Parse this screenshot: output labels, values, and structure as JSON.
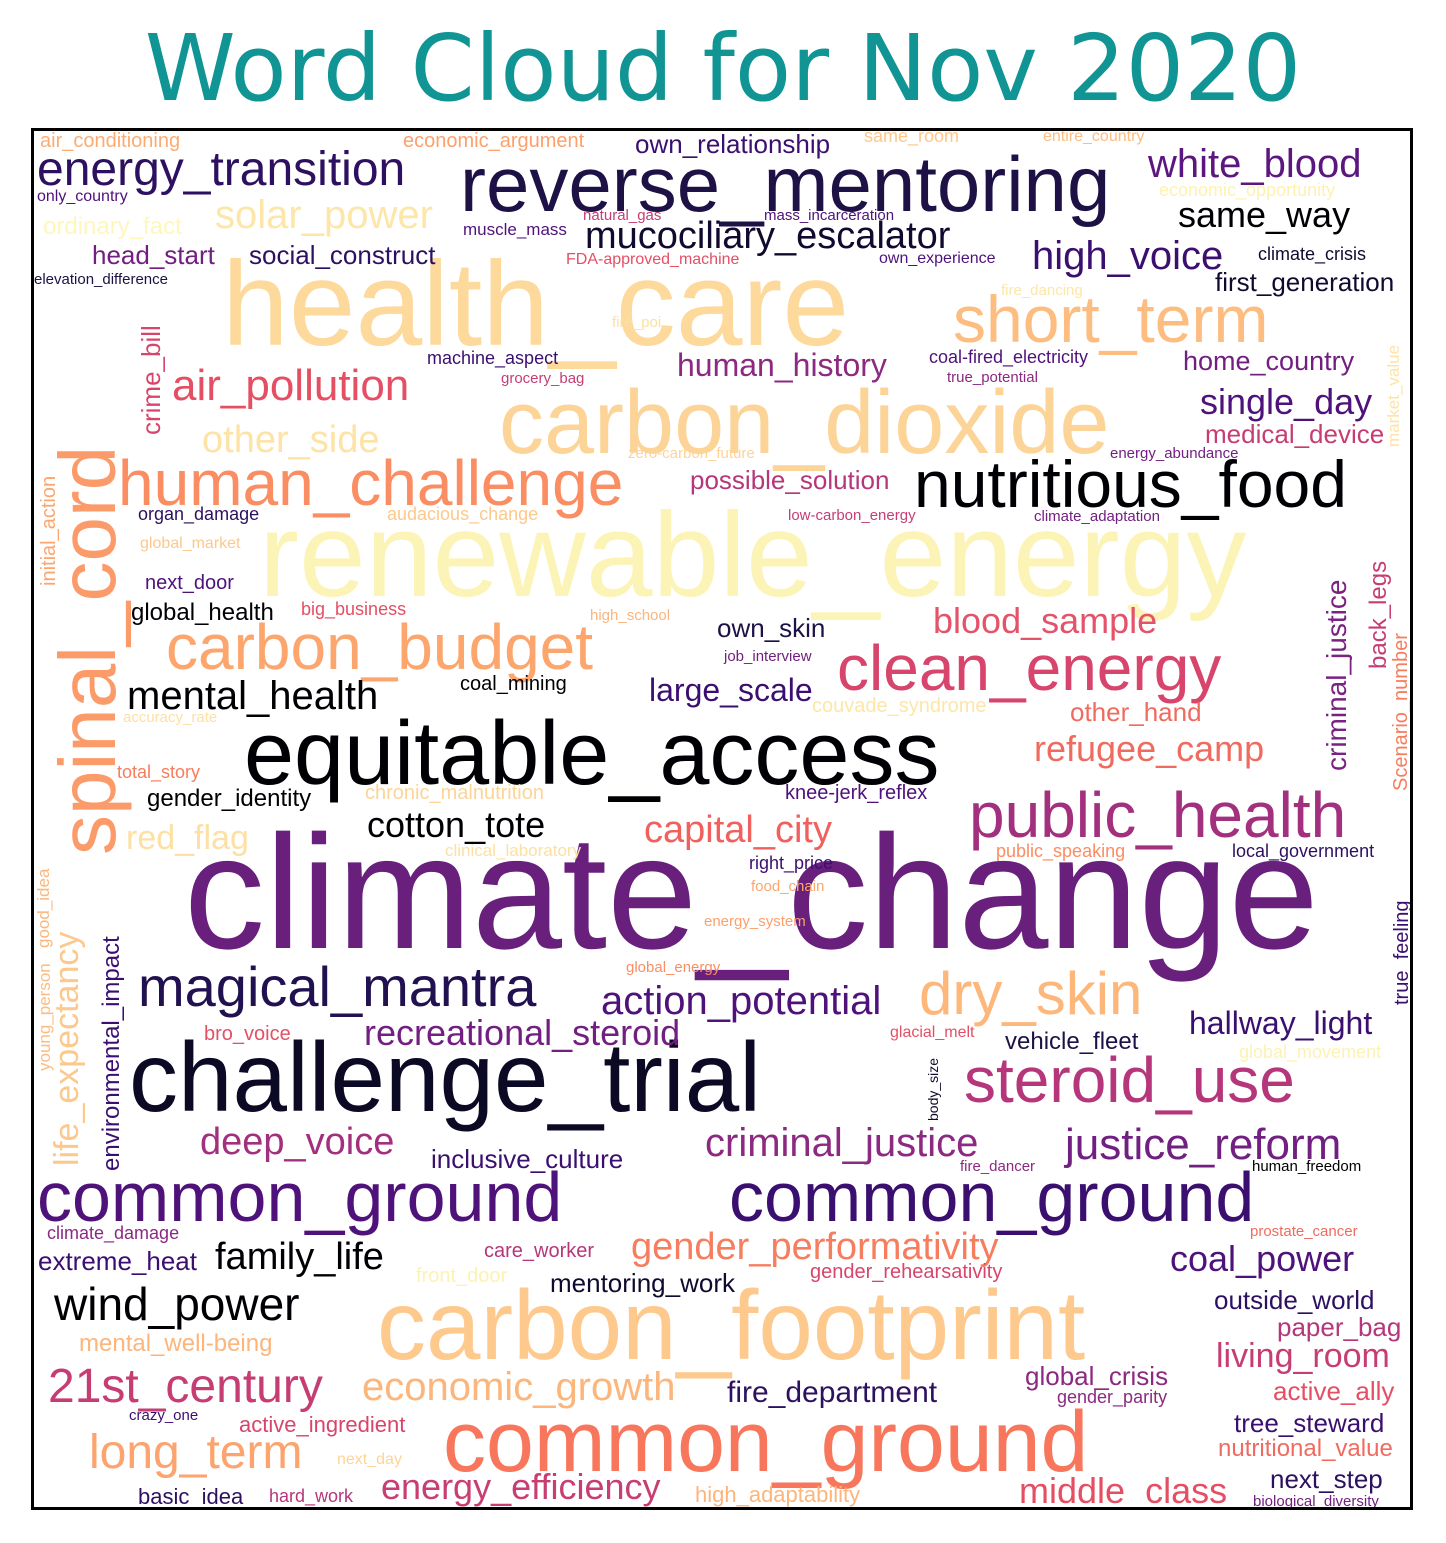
{
  "title": "Word Cloud for Nov 2020",
  "colors": {
    "title": "#109494",
    "border": "#000000",
    "background": "#ffffff"
  },
  "words": [
    {
      "text": "climate_change",
      "color": "#68207c"
    },
    {
      "text": "renewable_energy",
      "color": "#fcf4b6"
    },
    {
      "text": "health_care",
      "color": "#fdd99b"
    },
    {
      "text": "carbon_dioxide",
      "color": "#fdd498"
    },
    {
      "text": "equitable_access",
      "color": "#000004"
    },
    {
      "text": "challenge_trial",
      "color": "#0b0924"
    },
    {
      "text": "reverse_mentoring",
      "color": "#1d1146"
    },
    {
      "text": "carbon_footprint",
      "color": "#fec98d"
    },
    {
      "text": "common_ground",
      "color": "#f8765c"
    },
    {
      "text": "common_ground",
      "color": "#4f127b"
    },
    {
      "text": "common_ground",
      "color": "#3b0f70"
    },
    {
      "text": "spinal_cord",
      "color": "#fc9b6a"
    },
    {
      "text": "nutritious_food",
      "color": "#000004"
    },
    {
      "text": "human_challenge",
      "color": "#fb8d63"
    },
    {
      "text": "carbon_budget",
      "color": "#fca66e"
    },
    {
      "text": "clean_energy",
      "color": "#d8456c"
    },
    {
      "text": "public_health",
      "color": "#a3307e"
    },
    {
      "text": "short_term",
      "color": "#fdbd80"
    },
    {
      "text": "steroid_use",
      "color": "#b5367a"
    },
    {
      "text": "magical_mantra",
      "color": "#221150"
    },
    {
      "text": "dry_skin",
      "color": "#fdb77b"
    },
    {
      "text": "energy_transition",
      "color": "#2d1160"
    },
    {
      "text": "mucociliary_escalator",
      "color": "#110a2e"
    },
    {
      "text": "white_blood",
      "color": "#5c167f"
    },
    {
      "text": "same_way",
      "color": "#000004"
    },
    {
      "text": "solar_power",
      "color": "#fde6a8"
    },
    {
      "text": "high_voice",
      "color": "#3b0f70"
    },
    {
      "text": "air_pollution",
      "color": "#e44f64"
    },
    {
      "text": "other_side",
      "color": "#fde3a5"
    },
    {
      "text": "mental_health",
      "color": "#000004"
    },
    {
      "text": "action_potential",
      "color": "#4f127b"
    },
    {
      "text": "recreational_steroid",
      "color": "#721f81"
    },
    {
      "text": "criminal_justice",
      "color": "#8c2981"
    },
    {
      "text": "justice_reform",
      "color": "#711f81"
    },
    {
      "text": "deep_voice",
      "color": "#a3307e"
    },
    {
      "text": "family_life",
      "color": "#000004"
    },
    {
      "text": "wind_power",
      "color": "#000004"
    },
    {
      "text": "21st_century",
      "color": "#c63d73"
    },
    {
      "text": "economic_growth",
      "color": "#fcb57b"
    },
    {
      "text": "long_term",
      "color": "#fca36e"
    },
    {
      "text": "gender_performativity",
      "color": "#f67d5e"
    },
    {
      "text": "coal_power",
      "color": "#4f127b"
    },
    {
      "text": "cotton_tote",
      "color": "#000004"
    },
    {
      "text": "capital_city",
      "color": "#f0605d"
    },
    {
      "text": "refugee_camp",
      "color": "#f06b5f"
    },
    {
      "text": "blood_sample",
      "color": "#e3536a"
    },
    {
      "text": "large_scale",
      "color": "#3b0f70"
    },
    {
      "text": "single_day",
      "color": "#4f127b"
    },
    {
      "text": "home_country",
      "color": "#721f81"
    },
    {
      "text": "human_history",
      "color": "#8c2981"
    },
    {
      "text": "hallway_light",
      "color": "#3b0f70"
    },
    {
      "text": "middle_class",
      "color": "#e44f64"
    },
    {
      "text": "energy_efficiency",
      "color": "#c83e73"
    },
    {
      "text": "fire_department",
      "color": "#2d1160"
    },
    {
      "text": "living_room",
      "color": "#c63d73"
    },
    {
      "text": "criminal_justice",
      "color": "#7a2181"
    },
    {
      "text": "life_expectancy",
      "color": "#fdc88b"
    },
    {
      "text": "red_flag",
      "color": "#fde0a3"
    },
    {
      "text": "head_start",
      "color": "#721f81"
    },
    {
      "text": "social_construct",
      "color": "#2d1160"
    },
    {
      "text": "first_generation",
      "color": "#110a2e"
    },
    {
      "text": "medical_device",
      "color": "#c63d73"
    },
    {
      "text": "possible_solution",
      "color": "#b5367a"
    },
    {
      "text": "own_relationship",
      "color": "#3b0f70"
    },
    {
      "text": "outside_world",
      "color": "#2d1160"
    },
    {
      "text": "paper_bag",
      "color": "#b5367a"
    },
    {
      "text": "active_ally",
      "color": "#e44f64"
    },
    {
      "text": "global_crisis",
      "color": "#8c2981"
    },
    {
      "text": "tree_steward",
      "color": "#3b0f70"
    },
    {
      "text": "nutritional_value",
      "color": "#f06b5f"
    },
    {
      "text": "next_step",
      "color": "#2d1160"
    },
    {
      "text": "mentoring_work",
      "color": "#110a2e"
    },
    {
      "text": "inclusive_culture",
      "color": "#3b0f70"
    },
    {
      "text": "own_skin",
      "color": "#1d1146"
    },
    {
      "text": "vehicle_fleet",
      "color": "#1d1146"
    },
    {
      "text": "gender_identity",
      "color": "#000004"
    },
    {
      "text": "global_health",
      "color": "#000004"
    },
    {
      "text": "extreme_heat",
      "color": "#3b0f70"
    },
    {
      "text": "other_hand",
      "color": "#f06b5f"
    },
    {
      "text": "environmental_impact",
      "color": "#3b0f70"
    },
    {
      "text": "crime_bill",
      "color": "#d8456c"
    },
    {
      "text": "back_legs",
      "color": "#c63d73"
    },
    {
      "text": "Scenario_number",
      "color": "#f57d5e"
    },
    {
      "text": "true_feeling",
      "color": "#3b0f70"
    },
    {
      "text": "initial_action",
      "color": "#fca66e"
    },
    {
      "text": "air_conditioning",
      "color": "#fcac72"
    },
    {
      "text": "economic_argument",
      "color": "#fca06c"
    },
    {
      "text": "same_room",
      "color": "#fdc88b"
    },
    {
      "text": "entire_country",
      "color": "#fdbc80"
    },
    {
      "text": "only_country",
      "color": "#4f127b"
    },
    {
      "text": "economic_opportunity",
      "color": "#fdf2b2"
    },
    {
      "text": "ordinary_fact",
      "color": "#fef7bc"
    },
    {
      "text": "natural_gas",
      "color": "#c63d73"
    },
    {
      "text": "mass_incarceration",
      "color": "#4f127b"
    },
    {
      "text": "muscle_mass",
      "color": "#4f127b"
    },
    {
      "text": "FDA-approved_machine",
      "color": "#e44f64"
    },
    {
      "text": "own_experience",
      "color": "#4f127b"
    },
    {
      "text": "climate_crisis",
      "color": "#110a2e"
    },
    {
      "text": "elevation_difference",
      "color": "#1d1146"
    },
    {
      "text": "fire_dancing",
      "color": "#fde6a8"
    },
    {
      "text": "fire_poi",
      "color": "#fde0a3"
    },
    {
      "text": "machine_aspect",
      "color": "#3b0f70"
    },
    {
      "text": "coal-fired_electricity",
      "color": "#4f127b"
    },
    {
      "text": "grocery_bag",
      "color": "#c63d73"
    },
    {
      "text": "true_potential",
      "color": "#8c2981"
    },
    {
      "text": "market_value",
      "color": "#fde3a5"
    },
    {
      "text": "zero-carbon_future",
      "color": "#fdd498"
    },
    {
      "text": "energy_abundance",
      "color": "#721f81"
    },
    {
      "text": "organ_damage",
      "color": "#2d1160"
    },
    {
      "text": "audacious_change",
      "color": "#fdc88b"
    },
    {
      "text": "low-carbon_energy",
      "color": "#c63d73"
    },
    {
      "text": "climate_adaptation",
      "color": "#721f81"
    },
    {
      "text": "global_market",
      "color": "#fdc88b"
    },
    {
      "text": "next_door",
      "color": "#4f127b"
    },
    {
      "text": "big_business",
      "color": "#e44f64"
    },
    {
      "text": "high_school",
      "color": "#fcb57b"
    },
    {
      "text": "job_interview",
      "color": "#721f81"
    },
    {
      "text": "coal_mining",
      "color": "#000004"
    },
    {
      "text": "accuracy_rate",
      "color": "#fde0a3"
    },
    {
      "text": "couvade_syndrome",
      "color": "#fde6a8"
    },
    {
      "text": "total_story",
      "color": "#f67d5e"
    },
    {
      "text": "chronic_malnutrition",
      "color": "#fdd498"
    },
    {
      "text": "knee-jerk_reflex",
      "color": "#4f127b"
    },
    {
      "text": "clinical_laboratory",
      "color": "#fde0a3"
    },
    {
      "text": "public_speaking",
      "color": "#fb8d63"
    },
    {
      "text": "local_government",
      "color": "#2d1160"
    },
    {
      "text": "right_price",
      "color": "#3b0f70"
    },
    {
      "text": "food_chain",
      "color": "#fca66e"
    },
    {
      "text": "energy_system",
      "color": "#fca06c"
    },
    {
      "text": "good_idea",
      "color": "#fcb57b"
    },
    {
      "text": "young_person",
      "color": "#fdbc80"
    },
    {
      "text": "global_energy",
      "color": "#fb8d63"
    },
    {
      "text": "bro_voice",
      "color": "#e44f64"
    },
    {
      "text": "glacial_melt",
      "color": "#e44f64"
    },
    {
      "text": "body_size",
      "color": "#110a2e"
    },
    {
      "text": "global_movement",
      "color": "#fdf2b2"
    },
    {
      "text": "fire_dancer",
      "color": "#8c2981"
    },
    {
      "text": "human_freedom",
      "color": "#000004"
    },
    {
      "text": "climate_damage",
      "color": "#8c2981"
    },
    {
      "text": "prostate_cancer",
      "color": "#f06b5f"
    },
    {
      "text": "care_worker",
      "color": "#b5367a"
    },
    {
      "text": "front_door",
      "color": "#fdf2b2"
    },
    {
      "text": "gender_rehearsativity",
      "color": "#d8456c"
    },
    {
      "text": "mental_well-being",
      "color": "#fcb57b"
    },
    {
      "text": "crazy_one",
      "color": "#3b0f70"
    },
    {
      "text": "active_ingredient",
      "color": "#d8456c"
    },
    {
      "text": "gender_parity",
      "color": "#8c2981"
    },
    {
      "text": "next_day",
      "color": "#fdd498"
    },
    {
      "text": "basic_idea",
      "color": "#2d1160"
    },
    {
      "text": "hard_work",
      "color": "#b5367a"
    },
    {
      "text": "high_adaptability",
      "color": "#fcb57b"
    },
    {
      "text": "biological_diversity",
      "color": "#721f81"
    }
  ]
}
